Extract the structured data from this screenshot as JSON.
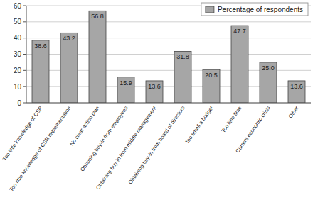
{
  "chart_data": {
    "type": "bar",
    "categories": [
      "Too little knowledge of CSR",
      "Too little knowledge of CSR implementation",
      "No clear action plan",
      "Obtaining buy-in from employees",
      "Obtaining buy-in from middle management",
      "Obtaining buy-in from board of directors",
      "Too small a budget",
      "Too little time",
      "Current economic crisis",
      "Other"
    ],
    "series": [
      {
        "name": "Percentage of respondents",
        "color": "#a6a6a6",
        "values": [
          38.6,
          43.2,
          56.8,
          15.9,
          13.6,
          31.8,
          20.5,
          47.7,
          25.0,
          13.6
        ],
        "value_labels": [
          "38.6",
          "43.2",
          "56.8",
          "15.9",
          "13.6",
          "31.8",
          "20.5",
          "47.7",
          "25.0",
          "13.6"
        ]
      }
    ],
    "ylim": [
      0,
      60
    ],
    "yticks": [
      0,
      10,
      20,
      30,
      40,
      50,
      60
    ],
    "grid": true,
    "legend": "top-right",
    "data_labels": true
  }
}
